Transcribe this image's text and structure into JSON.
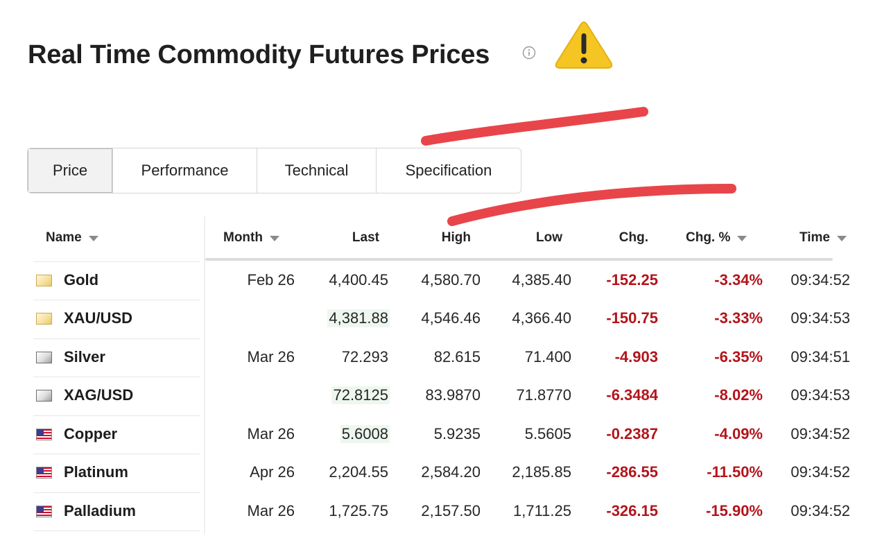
{
  "header": {
    "title": "Real Time Commodity Futures Prices"
  },
  "tabs": [
    {
      "label": "Price",
      "active": true
    },
    {
      "label": "Performance",
      "active": false
    },
    {
      "label": "Technical",
      "active": false
    },
    {
      "label": "Specification",
      "active": false
    }
  ],
  "table": {
    "columns": [
      "Name",
      "Month",
      "Last",
      "High",
      "Low",
      "Chg.",
      "Chg. %",
      "Time"
    ],
    "rows": [
      {
        "name": "Gold",
        "icon": "gold-bar-icon",
        "month": "Feb 26",
        "last": "4,400.45",
        "high": "4,580.70",
        "low": "4,385.40",
        "chg": "-152.25",
        "chg_pct": "-3.34%",
        "time": "09:34:52"
      },
      {
        "name": "XAU/USD",
        "icon": "gold-bar-icon",
        "month": "",
        "last": "4,381.88",
        "high": "4,546.46",
        "low": "4,366.40",
        "chg": "-150.75",
        "chg_pct": "-3.33%",
        "time": "09:34:53"
      },
      {
        "name": "Silver",
        "icon": "silver-bar-icon",
        "month": "Mar 26",
        "last": "72.293",
        "high": "82.615",
        "low": "71.400",
        "chg": "-4.903",
        "chg_pct": "-6.35%",
        "time": "09:34:51"
      },
      {
        "name": "XAG/USD",
        "icon": "silver-bar-icon",
        "month": "",
        "last": "72.8125",
        "high": "83.9870",
        "low": "71.8770",
        "chg": "-6.3484",
        "chg_pct": "-8.02%",
        "time": "09:34:53"
      },
      {
        "name": "Copper",
        "icon": "us-flag-icon",
        "month": "Mar 26",
        "last": "5.6008",
        "high": "5.9235",
        "low": "5.5605",
        "chg": "-0.2387",
        "chg_pct": "-4.09%",
        "time": "09:34:52"
      },
      {
        "name": "Platinum",
        "icon": "us-flag-icon",
        "month": "Apr 26",
        "last": "2,204.55",
        "high": "2,584.20",
        "low": "2,185.85",
        "chg": "-286.55",
        "chg_pct": "-11.50%",
        "time": "09:34:52"
      },
      {
        "name": "Palladium",
        "icon": "us-flag-icon",
        "month": "Mar 26",
        "last": "1,725.75",
        "high": "2,157.50",
        "low": "1,711.25",
        "chg": "-326.15",
        "chg_pct": "-15.90%",
        "time": "09:34:52"
      }
    ]
  },
  "colors": {
    "negative": "#b3141b",
    "annotation_stroke": "#e8454a",
    "warning_fill": "#f5c623"
  }
}
